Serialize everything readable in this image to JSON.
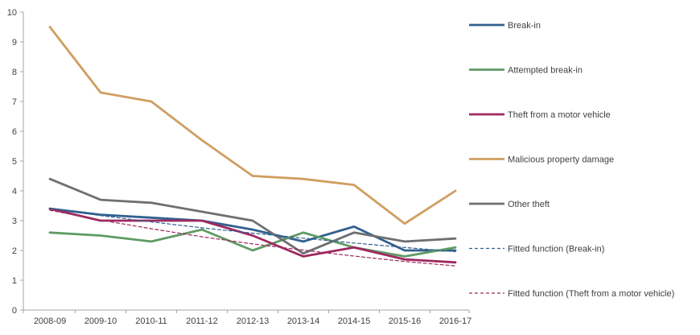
{
  "chart_data": {
    "type": "line",
    "title": "",
    "xlabel": "",
    "ylabel": "",
    "categories": [
      "2008-09",
      "2009-10",
      "2010-11",
      "2011-12",
      "2012-13",
      "2013-14",
      "2014-15",
      "2015-16",
      "2016-17"
    ],
    "series": [
      {
        "name": "Break-in",
        "color": "#31618F",
        "style": "solid",
        "values": [
          3.4,
          3.2,
          3.1,
          3.0,
          2.7,
          2.3,
          2.8,
          2.0,
          2.0
        ]
      },
      {
        "name": "Attempted break-in",
        "color": "#5F9B64",
        "style": "solid",
        "values": [
          2.6,
          2.5,
          2.3,
          2.7,
          2.0,
          2.6,
          2.1,
          1.8,
          2.1
        ]
      },
      {
        "name": "Theft from a motor vehicle",
        "color": "#9E2A60",
        "style": "solid",
        "values": [
          3.4,
          3.0,
          3.0,
          3.0,
          2.5,
          1.8,
          2.1,
          1.7,
          1.6
        ]
      },
      {
        "name": "Malicious property damage",
        "color": "#CF9E60",
        "style": "solid",
        "values": [
          9.5,
          7.3,
          7.0,
          5.7,
          4.5,
          4.4,
          4.2,
          2.9,
          4.0
        ]
      },
      {
        "name": "Other theft",
        "color": "#6E6F72",
        "style": "solid",
        "values": [
          4.4,
          3.7,
          3.6,
          3.3,
          3.0,
          1.9,
          2.6,
          2.3,
          2.4
        ]
      },
      {
        "name": "Fitted function (Break-in)",
        "color": "#31618F",
        "style": "dashed",
        "values": [
          3.4,
          3.17,
          2.96,
          2.76,
          2.58,
          2.41,
          2.25,
          2.1,
          1.96
        ]
      },
      {
        "name": "Fitted function (Theft from a motor vehicle)",
        "color": "#9E2A60",
        "style": "dashed",
        "values": [
          3.35,
          3.02,
          2.73,
          2.46,
          2.22,
          2.01,
          1.81,
          1.63,
          1.48
        ]
      }
    ],
    "ylim": [
      0,
      10
    ],
    "ytick_interval": 1,
    "ytick_labels": [
      "0",
      "1",
      "2",
      "3",
      "4",
      "5",
      "6",
      "7",
      "8",
      "9",
      "10"
    ],
    "grid": false,
    "legend_position": "right",
    "axis_color": "#A6A6A6",
    "text_color": "#404040"
  }
}
